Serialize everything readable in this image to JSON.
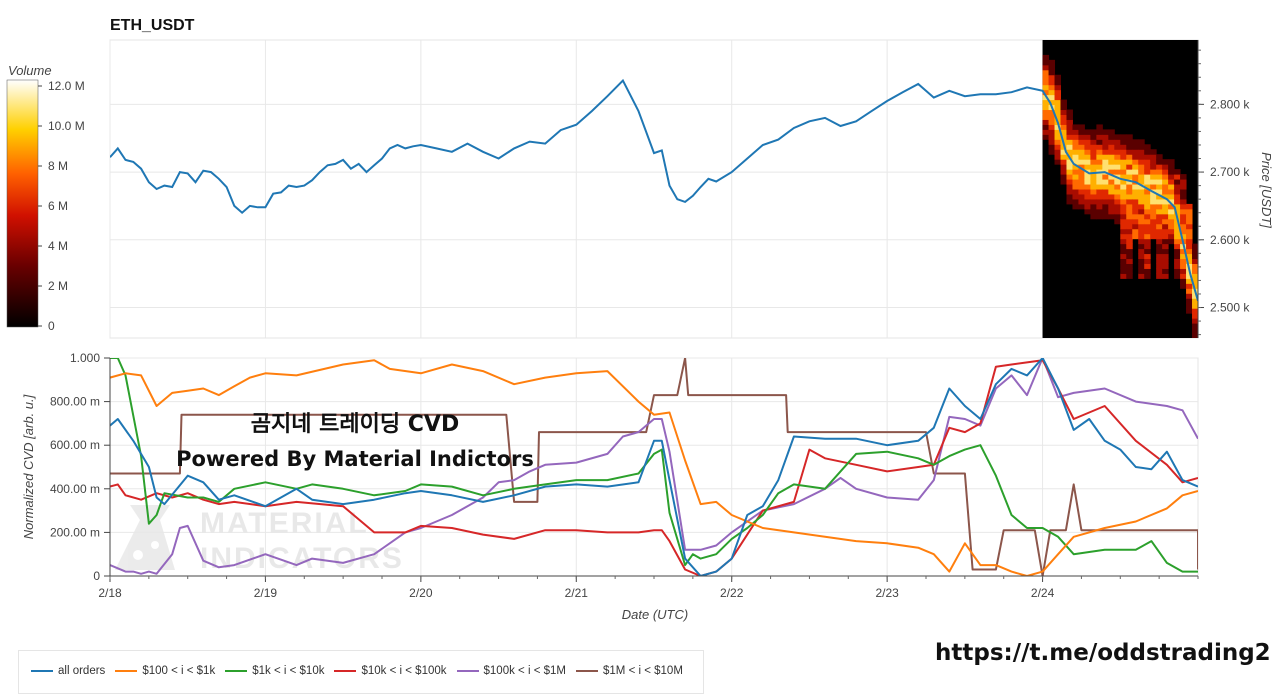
{
  "chart_title": "ETH_USDT",
  "colorbar": {
    "title": "Volume",
    "ticks": [
      "0",
      "2 M",
      "4 M",
      "6 M",
      "8 M",
      "10.0 M",
      "12.0 M"
    ]
  },
  "price_axis_label": "Price [USDT]",
  "cvd_axis_label": "Normalized CVD [arb. u.]",
  "x_axis_label": "Date (UTC)",
  "overlay": {
    "line1": "곰지네 트레이딩 CVD",
    "line2": "Powered By Material Indictors"
  },
  "watermark": [
    "MATERIAL",
    "INDICATORS"
  ],
  "telegram_link": "https://t.me/oddstrading2",
  "colors": {
    "all": "#1f77b4",
    "c100": "#ff7f0e",
    "c1k": "#2ca02c",
    "c10k": "#d62728",
    "c100k": "#9467bd",
    "c1M": "#8c564b"
  },
  "chart_data": [
    {
      "type": "line",
      "title": "ETH_USDT",
      "ylabel": "Price [USDT]",
      "ylim": [
        2455,
        2895
      ],
      "y_ticks": [
        2500,
        2600,
        2700,
        2800
      ],
      "y_tick_labels": [
        "2.500 k",
        "2.600 k",
        "2.700 k",
        "2.800 k"
      ],
      "x_range": [
        0,
        7.0
      ],
      "grid": true,
      "heatmap_region": {
        "x_start": 6.0,
        "x_end": 7.0,
        "cmap": "black-red-yellow-white",
        "vmax_label": "12.0 M"
      },
      "series": [
        {
          "name": "price",
          "x": [
            0.0,
            0.05,
            0.1,
            0.15,
            0.2,
            0.25,
            0.3,
            0.35,
            0.4,
            0.45,
            0.5,
            0.55,
            0.6,
            0.65,
            0.7,
            0.75,
            0.8,
            0.85,
            0.9,
            0.95,
            1.0,
            1.05,
            1.1,
            1.15,
            1.2,
            1.25,
            1.3,
            1.35,
            1.4,
            1.45,
            1.5,
            1.55,
            1.6,
            1.65,
            1.7,
            1.75,
            1.8,
            1.85,
            1.9,
            1.95,
            2.0,
            2.1,
            2.2,
            2.3,
            2.4,
            2.5,
            2.6,
            2.7,
            2.8,
            2.9,
            3.0,
            3.1,
            3.2,
            3.3,
            3.4,
            3.5,
            3.55,
            3.6,
            3.65,
            3.7,
            3.75,
            3.8,
            3.85,
            3.9,
            4.0,
            4.1,
            4.2,
            4.3,
            4.4,
            4.5,
            4.6,
            4.7,
            4.8,
            4.9,
            5.0,
            5.1,
            5.2,
            5.3,
            5.4,
            5.5,
            5.6,
            5.7,
            5.8,
            5.9,
            6.0,
            6.05,
            6.1,
            6.15,
            6.2,
            6.3,
            6.4,
            6.5,
            6.6,
            6.7,
            6.8,
            6.85,
            6.9,
            6.95,
            7.0
          ],
          "y": [
            2722,
            2735,
            2718,
            2715,
            2705,
            2685,
            2675,
            2680,
            2678,
            2700,
            2698,
            2685,
            2702,
            2700,
            2690,
            2678,
            2650,
            2640,
            2650,
            2648,
            2648,
            2668,
            2670,
            2680,
            2678,
            2680,
            2688,
            2700,
            2710,
            2712,
            2718,
            2705,
            2712,
            2700,
            2710,
            2720,
            2735,
            2740,
            2735,
            2738,
            2740,
            2735,
            2730,
            2742,
            2730,
            2720,
            2735,
            2745,
            2742,
            2762,
            2770,
            2790,
            2812,
            2835,
            2790,
            2728,
            2732,
            2680,
            2660,
            2656,
            2665,
            2678,
            2690,
            2686,
            2700,
            2720,
            2740,
            2748,
            2765,
            2775,
            2780,
            2768,
            2775,
            2790,
            2805,
            2818,
            2830,
            2810,
            2820,
            2812,
            2815,
            2815,
            2818,
            2825,
            2820,
            2802,
            2772,
            2730,
            2712,
            2698,
            2700,
            2690,
            2685,
            2672,
            2660,
            2648,
            2600,
            2550,
            2510
          ]
        }
      ]
    },
    {
      "type": "line",
      "ylabel": "Normalized CVD [arb. u.]",
      "xlabel": "Date (UTC)",
      "ylim": [
        0,
        1.0
      ],
      "y_ticks": [
        0,
        0.2,
        0.4,
        0.6,
        0.8,
        1.0
      ],
      "y_tick_labels": [
        "0",
        "200.00 m",
        "400.00 m",
        "600.00 m",
        "800.00 m",
        "1.000"
      ],
      "x_ticks": [
        0,
        1,
        2,
        3,
        4,
        5,
        6
      ],
      "x_tick_labels": [
        "2/18",
        "2/19",
        "2/20",
        "2/21",
        "2/22",
        "2/23",
        "2/24"
      ],
      "x_range": [
        0,
        7.0
      ],
      "grid": true,
      "legend_position": "bottom-left",
      "series": [
        {
          "name": "all orders",
          "x": [
            0,
            0.05,
            0.15,
            0.25,
            0.3,
            0.35,
            0.5,
            0.6,
            0.7,
            0.8,
            1.0,
            1.2,
            1.3,
            1.5,
            1.7,
            1.9,
            2.0,
            2.2,
            2.4,
            2.6,
            2.8,
            3.0,
            3.2,
            3.4,
            3.5,
            3.55,
            3.6,
            3.7,
            3.8,
            3.9,
            4.0,
            4.1,
            4.2,
            4.3,
            4.4,
            4.6,
            4.8,
            5.0,
            5.2,
            5.3,
            5.4,
            5.5,
            5.6,
            5.7,
            5.8,
            5.9,
            6.0,
            6.1,
            6.2,
            6.3,
            6.4,
            6.5,
            6.6,
            6.7,
            6.8,
            6.9,
            7.0
          ],
          "y": [
            0.69,
            0.72,
            0.62,
            0.5,
            0.36,
            0.33,
            0.46,
            0.43,
            0.35,
            0.37,
            0.32,
            0.4,
            0.35,
            0.33,
            0.35,
            0.38,
            0.39,
            0.37,
            0.34,
            0.37,
            0.41,
            0.42,
            0.41,
            0.43,
            0.62,
            0.62,
            0.44,
            0.08,
            0.0,
            0.02,
            0.08,
            0.28,
            0.32,
            0.44,
            0.64,
            0.63,
            0.63,
            0.6,
            0.62,
            0.68,
            0.86,
            0.78,
            0.72,
            0.88,
            0.95,
            0.92,
            1.0,
            0.86,
            0.67,
            0.72,
            0.62,
            0.58,
            0.5,
            0.49,
            0.57,
            0.44,
            0.41
          ]
        },
        {
          "name": "$100 < i < $1k",
          "x": [
            0,
            0.1,
            0.2,
            0.3,
            0.4,
            0.5,
            0.6,
            0.7,
            0.8,
            0.9,
            1.0,
            1.2,
            1.5,
            1.7,
            1.8,
            2.0,
            2.2,
            2.4,
            2.6,
            2.8,
            3.0,
            3.2,
            3.4,
            3.5,
            3.6,
            3.7,
            3.8,
            3.9,
            4.0,
            4.2,
            4.4,
            4.6,
            4.8,
            5.0,
            5.2,
            5.3,
            5.4,
            5.5,
            5.6,
            5.7,
            5.8,
            5.9,
            6.0,
            6.1,
            6.2,
            6.4,
            6.6,
            6.8,
            6.9,
            7.0
          ],
          "y": [
            0.91,
            0.93,
            0.92,
            0.78,
            0.84,
            0.85,
            0.86,
            0.83,
            0.87,
            0.91,
            0.93,
            0.92,
            0.97,
            0.99,
            0.95,
            0.93,
            0.97,
            0.94,
            0.88,
            0.91,
            0.93,
            0.94,
            0.8,
            0.74,
            0.75,
            0.53,
            0.33,
            0.34,
            0.28,
            0.22,
            0.2,
            0.18,
            0.16,
            0.15,
            0.13,
            0.1,
            0.02,
            0.15,
            0.05,
            0.05,
            0.02,
            0.0,
            0.02,
            0.1,
            0.18,
            0.22,
            0.25,
            0.31,
            0.37,
            0.39
          ]
        },
        {
          "name": "$1k < i < $10k",
          "x": [
            0,
            0.05,
            0.1,
            0.2,
            0.25,
            0.3,
            0.35,
            0.5,
            0.6,
            0.7,
            0.8,
            1.0,
            1.2,
            1.3,
            1.5,
            1.7,
            1.9,
            2.0,
            2.2,
            2.4,
            2.6,
            2.8,
            3.0,
            3.2,
            3.4,
            3.5,
            3.55,
            3.6,
            3.7,
            3.75,
            3.8,
            3.9,
            4.0,
            4.1,
            4.2,
            4.3,
            4.4,
            4.6,
            4.8,
            5.0,
            5.2,
            5.3,
            5.4,
            5.5,
            5.6,
            5.7,
            5.8,
            5.9,
            6.0,
            6.1,
            6.2,
            6.4,
            6.6,
            6.7,
            6.8,
            6.9,
            7.0
          ],
          "y": [
            1.0,
            1.0,
            0.92,
            0.55,
            0.24,
            0.28,
            0.38,
            0.36,
            0.36,
            0.34,
            0.4,
            0.43,
            0.4,
            0.42,
            0.4,
            0.37,
            0.39,
            0.42,
            0.41,
            0.37,
            0.4,
            0.42,
            0.44,
            0.44,
            0.47,
            0.56,
            0.58,
            0.29,
            0.05,
            0.1,
            0.08,
            0.1,
            0.17,
            0.22,
            0.28,
            0.38,
            0.42,
            0.4,
            0.56,
            0.57,
            0.54,
            0.51,
            0.55,
            0.58,
            0.6,
            0.46,
            0.28,
            0.22,
            0.22,
            0.18,
            0.1,
            0.12,
            0.12,
            0.16,
            0.06,
            0.02,
            0.02
          ]
        },
        {
          "name": "$10k < i < $100k",
          "x": [
            0,
            0.05,
            0.1,
            0.2,
            0.3,
            0.4,
            0.5,
            0.6,
            0.7,
            0.8,
            1.0,
            1.2,
            1.5,
            1.7,
            1.9,
            2.0,
            2.2,
            2.4,
            2.6,
            2.8,
            3.0,
            3.2,
            3.4,
            3.5,
            3.55,
            3.6,
            3.7,
            3.8,
            3.9,
            4.0,
            4.2,
            4.4,
            4.5,
            4.6,
            4.8,
            5.0,
            5.2,
            5.3,
            5.4,
            5.5,
            5.6,
            5.7,
            5.8,
            5.9,
            6.0,
            6.1,
            6.2,
            6.4,
            6.6,
            6.8,
            6.9,
            7.0
          ],
          "y": [
            0.41,
            0.42,
            0.37,
            0.35,
            0.38,
            0.36,
            0.38,
            0.35,
            0.33,
            0.34,
            0.32,
            0.34,
            0.32,
            0.2,
            0.2,
            0.23,
            0.22,
            0.19,
            0.17,
            0.21,
            0.21,
            0.2,
            0.2,
            0.21,
            0.21,
            0.16,
            0.03,
            0.0,
            0.02,
            0.08,
            0.3,
            0.34,
            0.58,
            0.54,
            0.51,
            0.48,
            0.5,
            0.51,
            0.68,
            0.66,
            0.7,
            0.96,
            0.97,
            0.98,
            0.99,
            0.86,
            0.72,
            0.78,
            0.62,
            0.51,
            0.43,
            0.45
          ]
        },
        {
          "name": "$100k < i < $1M",
          "x": [
            0,
            0.1,
            0.15,
            0.2,
            0.25,
            0.3,
            0.4,
            0.45,
            0.5,
            0.6,
            0.7,
            0.8,
            1.0,
            1.2,
            1.3,
            1.5,
            1.7,
            1.9,
            2.0,
            2.2,
            2.4,
            2.5,
            2.6,
            2.7,
            2.8,
            3.0,
            3.2,
            3.3,
            3.4,
            3.5,
            3.55,
            3.6,
            3.7,
            3.8,
            3.9,
            4.0,
            4.2,
            4.4,
            4.6,
            4.7,
            4.8,
            5.0,
            5.2,
            5.3,
            5.4,
            5.5,
            5.6,
            5.7,
            5.8,
            5.9,
            6.0,
            6.1,
            6.2,
            6.4,
            6.6,
            6.8,
            6.9,
            7.0
          ],
          "y": [
            0.05,
            0.02,
            0.02,
            0.01,
            0.02,
            0.01,
            0.1,
            0.22,
            0.23,
            0.07,
            0.04,
            0.05,
            0.1,
            0.05,
            0.08,
            0.06,
            0.1,
            0.2,
            0.22,
            0.28,
            0.36,
            0.43,
            0.44,
            0.48,
            0.51,
            0.52,
            0.56,
            0.64,
            0.66,
            0.72,
            0.72,
            0.57,
            0.12,
            0.12,
            0.14,
            0.2,
            0.3,
            0.33,
            0.4,
            0.45,
            0.4,
            0.36,
            0.35,
            0.44,
            0.73,
            0.72,
            0.69,
            0.86,
            0.92,
            0.83,
            1.0,
            0.82,
            0.84,
            0.86,
            0.8,
            0.78,
            0.76,
            0.63
          ]
        },
        {
          "name": "$1M < i < $10M",
          "x": [
            0,
            0.45,
            0.46,
            2.55,
            2.6,
            2.75,
            2.76,
            3.45,
            3.5,
            3.65,
            3.7,
            3.72,
            4.0,
            4.35,
            4.36,
            5.25,
            5.3,
            5.5,
            5.55,
            5.7,
            5.75,
            5.95,
            6.0,
            6.05,
            6.15,
            6.2,
            6.25,
            7.0,
            7.0
          ],
          "y": [
            0.47,
            0.47,
            0.74,
            0.74,
            0.34,
            0.34,
            0.66,
            0.66,
            0.83,
            0.83,
            1.0,
            0.83,
            0.83,
            0.83,
            0.66,
            0.66,
            0.47,
            0.47,
            0.03,
            0.03,
            0.21,
            0.21,
            0.0,
            0.21,
            0.21,
            0.42,
            0.21,
            0.21,
            0.03
          ]
        }
      ]
    }
  ]
}
